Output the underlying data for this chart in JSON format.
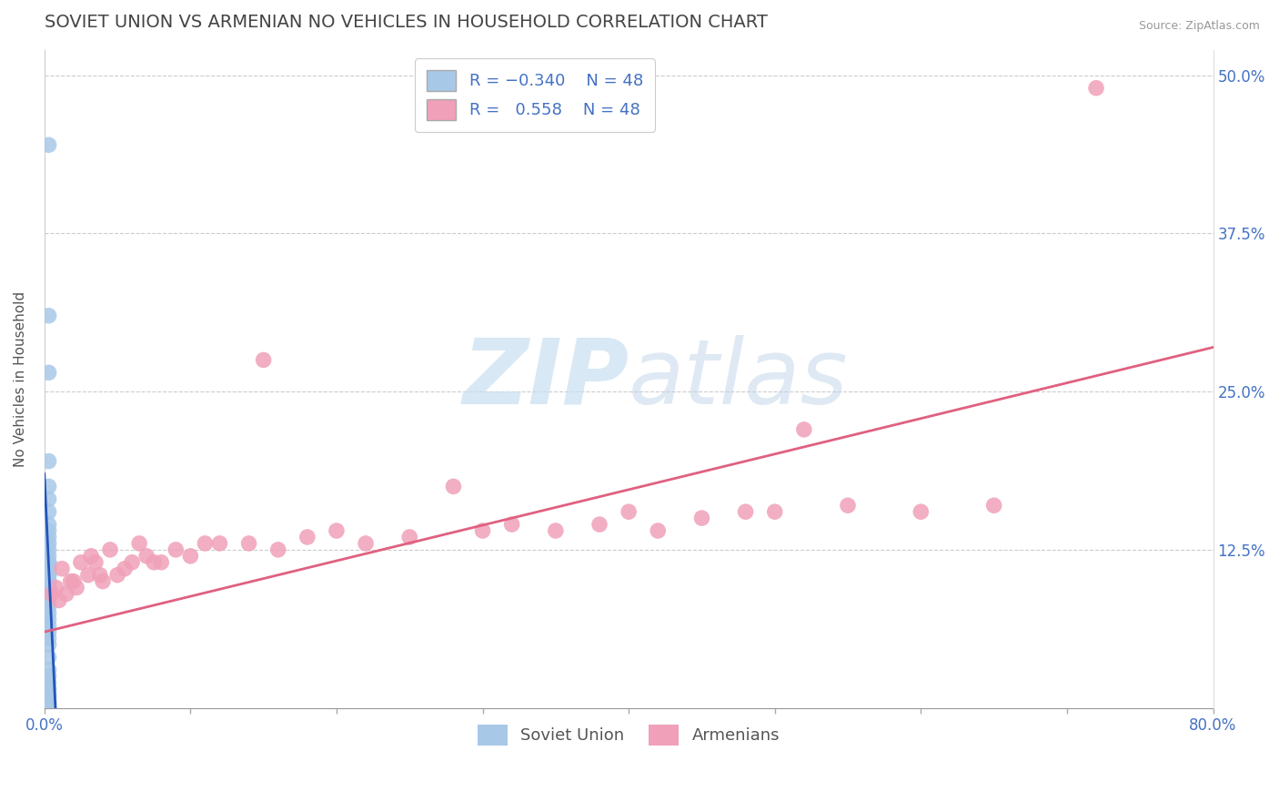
{
  "title": "SOVIET UNION VS ARMENIAN NO VEHICLES IN HOUSEHOLD CORRELATION CHART",
  "source": "Source: ZipAtlas.com",
  "ylabel": "No Vehicles in Household",
  "xlim": [
    0.0,
    0.8
  ],
  "ylim": [
    0.0,
    0.52
  ],
  "x_ticks": [
    0.0,
    0.1,
    0.2,
    0.3,
    0.4,
    0.5,
    0.6,
    0.7,
    0.8
  ],
  "x_tick_labels": [
    "0.0%",
    "",
    "",
    "",
    "",
    "",
    "",
    "",
    "80.0%"
  ],
  "y_ticks": [
    0.0,
    0.125,
    0.25,
    0.375,
    0.5
  ],
  "y_tick_labels_right": [
    "",
    "12.5%",
    "25.0%",
    "37.5%",
    "50.0%"
  ],
  "soviet_color": "#a8c8e8",
  "armenian_color": "#f0a0b8",
  "soviet_line_color": "#2255bb",
  "armenian_line_color": "#e06080",
  "background_color": "#ffffff",
  "watermark_color": "#c8dff0",
  "title_fontsize": 14,
  "axis_label_fontsize": 11,
  "tick_fontsize": 12,
  "legend_fontsize": 13,
  "soviet_x": [
    0.003,
    0.003,
    0.003,
    0.003,
    0.003,
    0.003,
    0.003,
    0.003,
    0.003,
    0.003,
    0.003,
    0.003,
    0.003,
    0.003,
    0.003,
    0.003,
    0.003,
    0.003,
    0.003,
    0.003,
    0.003,
    0.003,
    0.003,
    0.003,
    0.003,
    0.003,
    0.003,
    0.003,
    0.003,
    0.003,
    0.003,
    0.003,
    0.003,
    0.003,
    0.003,
    0.003,
    0.003,
    0.003,
    0.003,
    0.003,
    0.003,
    0.003,
    0.003,
    0.003,
    0.003,
    0.003,
    0.003,
    0.003
  ],
  "soviet_y": [
    0.445,
    0.31,
    0.265,
    0.195,
    0.175,
    0.165,
    0.155,
    0.145,
    0.14,
    0.135,
    0.13,
    0.125,
    0.12,
    0.115,
    0.115,
    0.115,
    0.11,
    0.11,
    0.11,
    0.105,
    0.105,
    0.105,
    0.1,
    0.1,
    0.1,
    0.1,
    0.095,
    0.095,
    0.09,
    0.09,
    0.09,
    0.085,
    0.08,
    0.075,
    0.07,
    0.065,
    0.06,
    0.055,
    0.05,
    0.04,
    0.03,
    0.025,
    0.02,
    0.015,
    0.01,
    0.005,
    0.003,
    0.0
  ],
  "armenian_x": [
    0.005,
    0.008,
    0.01,
    0.012,
    0.015,
    0.018,
    0.02,
    0.022,
    0.025,
    0.03,
    0.032,
    0.035,
    0.038,
    0.04,
    0.045,
    0.05,
    0.055,
    0.06,
    0.065,
    0.07,
    0.075,
    0.08,
    0.09,
    0.1,
    0.11,
    0.12,
    0.14,
    0.15,
    0.16,
    0.18,
    0.2,
    0.22,
    0.25,
    0.28,
    0.3,
    0.32,
    0.35,
    0.38,
    0.4,
    0.42,
    0.45,
    0.48,
    0.5,
    0.52,
    0.55,
    0.6,
    0.65,
    0.72
  ],
  "armenian_y": [
    0.09,
    0.095,
    0.085,
    0.11,
    0.09,
    0.1,
    0.1,
    0.095,
    0.115,
    0.105,
    0.12,
    0.115,
    0.105,
    0.1,
    0.125,
    0.105,
    0.11,
    0.115,
    0.13,
    0.12,
    0.115,
    0.115,
    0.125,
    0.12,
    0.13,
    0.13,
    0.13,
    0.275,
    0.125,
    0.135,
    0.14,
    0.13,
    0.135,
    0.175,
    0.14,
    0.145,
    0.14,
    0.145,
    0.155,
    0.14,
    0.15,
    0.155,
    0.155,
    0.22,
    0.16,
    0.155,
    0.16,
    0.49
  ],
  "armenian_line_x": [
    0.0,
    0.8
  ],
  "armenian_line_y": [
    0.06,
    0.285
  ]
}
